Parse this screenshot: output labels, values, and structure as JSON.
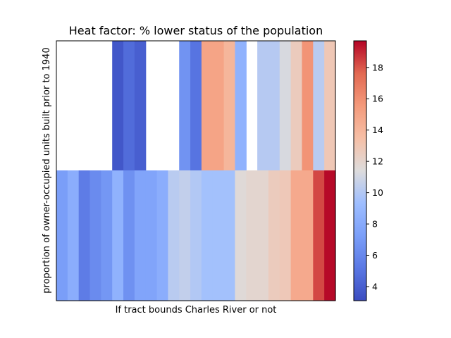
{
  "chart_data": {
    "type": "heatmap",
    "title": "Heat factor: % lower status of the population",
    "xlabel": "If tract bounds Charles River or not",
    "ylabel": "proportion of owner-occupied units built prior to 1940",
    "colormap": "coolwarm",
    "colorbar": {
      "vmin": 3.1,
      "vmax": 19.7,
      "ticks": [
        4,
        6,
        8,
        10,
        12,
        14,
        16,
        18
      ]
    },
    "x_columns": 25,
    "rows": [
      {
        "row": "top",
        "values": [
          null,
          null,
          null,
          null,
          null,
          3.6,
          4.6,
          4.0,
          null,
          null,
          null,
          6.6,
          5.0,
          15.0,
          15.0,
          14.0,
          8.5,
          null,
          10.1,
          10.1,
          11.2,
          12.6,
          15.8,
          10.2,
          12.9
        ]
      },
      {
        "row": "bottom",
        "values": [
          7.2,
          8.2,
          5.4,
          6.2,
          6.8,
          8.5,
          6.5,
          7.6,
          7.6,
          8.2,
          10.2,
          10.5,
          10.0,
          9.5,
          9.5,
          9.5,
          11.6,
          11.9,
          11.9,
          12.6,
          12.8,
          14.7,
          14.7,
          18.3,
          19.6
        ]
      }
    ]
  }
}
